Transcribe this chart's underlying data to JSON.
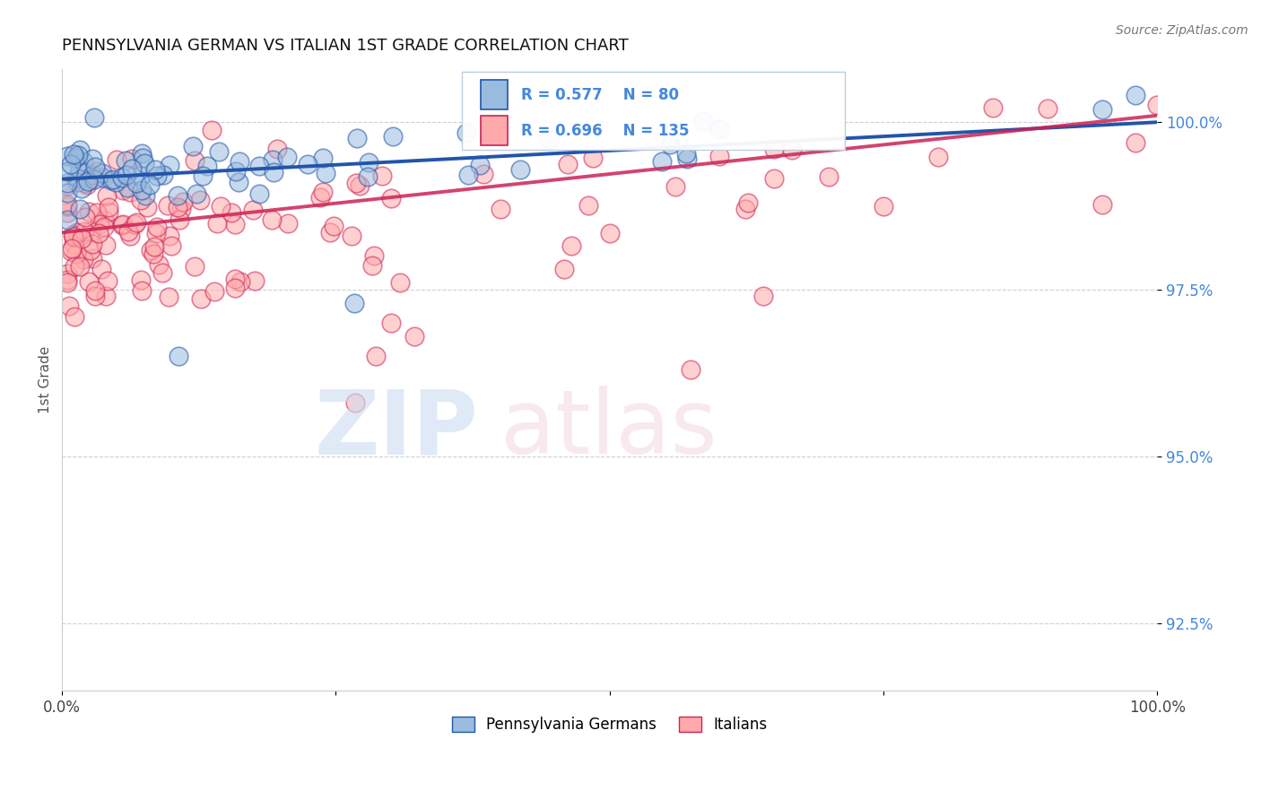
{
  "title": "PENNSYLVANIA GERMAN VS ITALIAN 1ST GRADE CORRELATION CHART",
  "source_text": "Source: ZipAtlas.com",
  "ylabel": "1st Grade",
  "xmin": 0.0,
  "xmax": 100.0,
  "ymin": 91.5,
  "ymax": 100.8,
  "yticks": [
    92.5,
    95.0,
    97.5,
    100.0
  ],
  "ytick_labels": [
    "92.5%",
    "95.0%",
    "97.5%",
    "100.0%"
  ],
  "german_R": 0.577,
  "german_N": 80,
  "italian_R": 0.696,
  "italian_N": 135,
  "german_color": "#99BBDD",
  "italian_color": "#FFAAAA",
  "german_line_color": "#2255AA",
  "italian_line_color": "#CC2255",
  "background_color": "#FFFFFF",
  "title_fontsize": 13,
  "axis_label_color": "#4488DD",
  "grid_color": "#BBBBBB",
  "legend_label_german": "Pennsylvania Germans",
  "legend_label_italian": "Italians",
  "german_seed": 42,
  "italian_seed": 77
}
